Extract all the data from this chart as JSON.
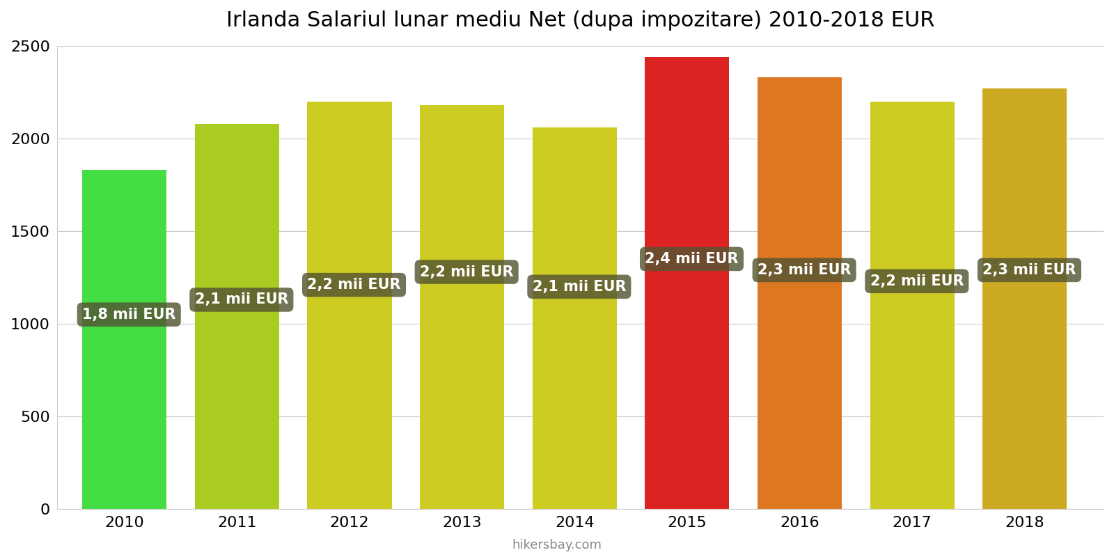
{
  "title": "Irlanda Salariul lunar mediu Net (dupa impozitare) 2010-2018 EUR",
  "years": [
    2010,
    2011,
    2012,
    2013,
    2014,
    2015,
    2016,
    2017,
    2018
  ],
  "values": [
    1830,
    2080,
    2200,
    2180,
    2060,
    2440,
    2330,
    2200,
    2270
  ],
  "labels": [
    "1,8 mii EUR",
    "2,1 mii EUR",
    "2,2 mii EUR",
    "2,2 mii EUR",
    "2,1 mii EUR",
    "2,4 mii EUR",
    "2,3 mii EUR",
    "2,2 mii EUR",
    "2,3 mii EUR"
  ],
  "label_y_positions": [
    1050,
    1130,
    1210,
    1280,
    1200,
    1350,
    1290,
    1230,
    1290
  ],
  "bar_colors": [
    "#44dd44",
    "#aacc22",
    "#cccc22",
    "#cccc22",
    "#cccc22",
    "#dd2222",
    "#dd7722",
    "#cccc22",
    "#ccaa22"
  ],
  "ylim": [
    0,
    2500
  ],
  "yticks": [
    0,
    500,
    1000,
    1500,
    2000,
    2500
  ],
  "background_color": "#ffffff",
  "label_bg_color": "#555533",
  "label_text_color": "#ffffff",
  "footer_text": "hikersbay.com",
  "title_fontsize": 22,
  "tick_fontsize": 16,
  "label_fontsize": 15,
  "bar_width": 0.75
}
